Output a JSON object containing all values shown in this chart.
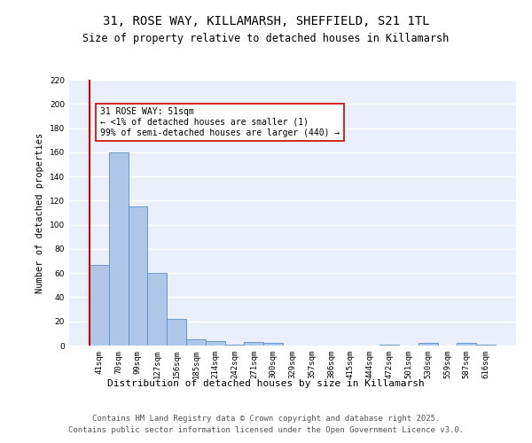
{
  "title_line1": "31, ROSE WAY, KILLAMARSH, SHEFFIELD, S21 1TL",
  "title_line2": "Size of property relative to detached houses in Killamarsh",
  "xlabel": "Distribution of detached houses by size in Killamarsh",
  "ylabel": "Number of detached properties",
  "categories": [
    "41sqm",
    "70sqm",
    "99sqm",
    "127sqm",
    "156sqm",
    "185sqm",
    "214sqm",
    "242sqm",
    "271sqm",
    "300sqm",
    "329sqm",
    "357sqm",
    "386sqm",
    "415sqm",
    "444sqm",
    "472sqm",
    "501sqm",
    "530sqm",
    "559sqm",
    "587sqm",
    "616sqm"
  ],
  "values": [
    67,
    160,
    115,
    60,
    22,
    5,
    4,
    1,
    3,
    2,
    0,
    0,
    0,
    0,
    0,
    1,
    0,
    2,
    0,
    2,
    1
  ],
  "bar_color": "#aec6e8",
  "bar_edge_color": "#5a8fc4",
  "annotation_box_text": "31 ROSE WAY: 51sqm\n← <1% of detached houses are smaller (1)\n99% of semi-detached houses are larger (440) →",
  "vline_color": "#cc0000",
  "ylim": [
    0,
    220
  ],
  "yticks": [
    0,
    20,
    40,
    60,
    80,
    100,
    120,
    140,
    160,
    180,
    200,
    220
  ],
  "bg_color": "#eaf0fb",
  "grid_color": "#ffffff",
  "footer_line1": "Contains HM Land Registry data © Crown copyright and database right 2025.",
  "footer_line2": "Contains public sector information licensed under the Open Government Licence v3.0.",
  "title_fontsize": 10,
  "subtitle_fontsize": 8.5,
  "annotation_fontsize": 7,
  "footer_fontsize": 6.5,
  "tick_fontsize": 6.5,
  "ylabel_fontsize": 7.5,
  "xlabel_fontsize": 8
}
